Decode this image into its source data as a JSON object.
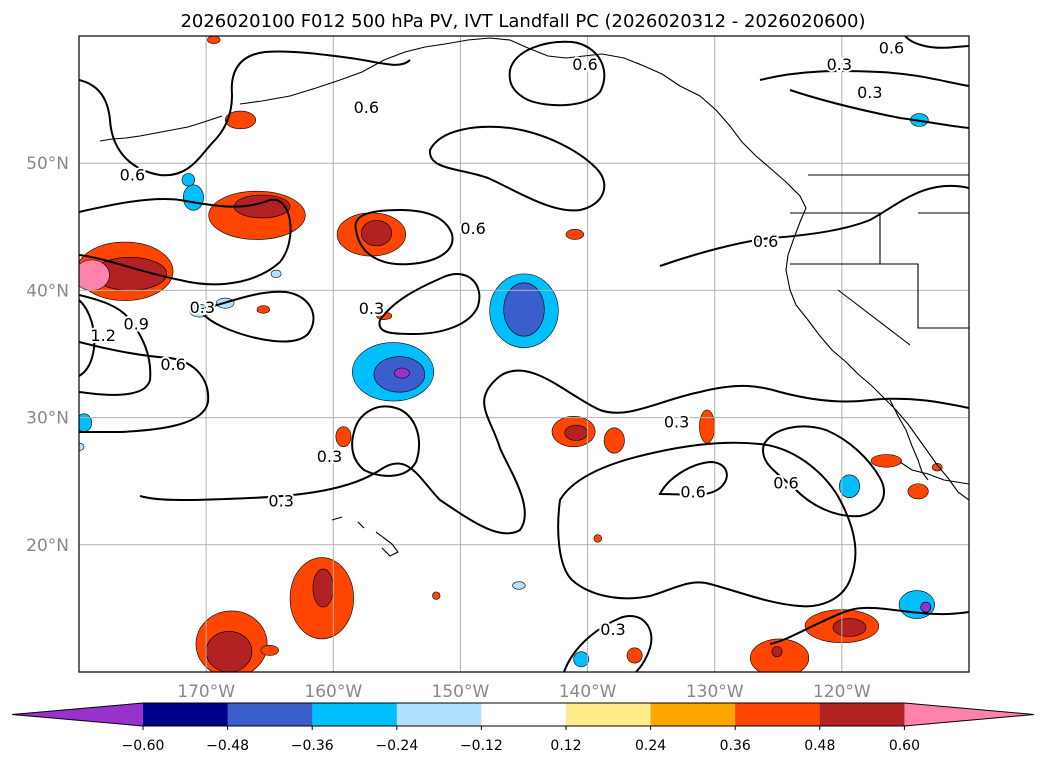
{
  "chart_data": {
    "type": "heatmap",
    "title": "2026020100 F012 500 hPa PV, IVT Landfall PC (2026020312 - 2026020600)",
    "xlim": [
      -180,
      -110
    ],
    "ylim": [
      10,
      60
    ],
    "x_ticks": [
      {
        "value": -170,
        "label": "170°W"
      },
      {
        "value": -160,
        "label": "160°W"
      },
      {
        "value": -150,
        "label": "150°W"
      },
      {
        "value": -140,
        "label": "140°W"
      },
      {
        "value": -130,
        "label": "130°W"
      },
      {
        "value": -120,
        "label": "120°W"
      }
    ],
    "y_ticks": [
      {
        "value": 20,
        "label": "20°N"
      },
      {
        "value": 30,
        "label": "30°N"
      },
      {
        "value": 40,
        "label": "40°N"
      },
      {
        "value": 50,
        "label": "50°N"
      }
    ],
    "grid": true,
    "colorbar": {
      "orientation": "horizontal",
      "placement": "bottom",
      "extend": "both",
      "levels": [
        -0.6,
        -0.48,
        -0.36,
        -0.24,
        -0.12,
        0.12,
        0.24,
        0.36,
        0.48,
        0.6
      ],
      "tick_labels": [
        "−0.60",
        "−0.48",
        "−0.36",
        "−0.24",
        "−0.12",
        "0.12",
        "0.24",
        "0.36",
        "0.48",
        "0.60"
      ],
      "colors": [
        "#9932cc",
        "#00008b",
        "#3a5fcd",
        "#00bfff",
        "#b0e2ff",
        "#ffffff",
        "#ffec8b",
        "#ffa500",
        "#ff4500",
        "#b22222",
        "#ff82ab"
      ]
    },
    "contour_labels": [
      {
        "text": "0.6",
        "lon": -157.4,
        "lat": 54.4
      },
      {
        "text": "0.6",
        "lon": -140.2,
        "lat": 57.8
      },
      {
        "text": "0.3",
        "lon": -120.2,
        "lat": 57.8
      },
      {
        "text": "0.3",
        "lon": -117.8,
        "lat": 55.6
      },
      {
        "text": "0.6",
        "lon": -116.1,
        "lat": 59.1
      },
      {
        "text": "0.6",
        "lon": -175.8,
        "lat": 49.1
      },
      {
        "text": "0.6",
        "lon": -149.0,
        "lat": 44.9
      },
      {
        "text": "0.6",
        "lon": -126.0,
        "lat": 43.9
      },
      {
        "text": "0.3",
        "lon": -170.3,
        "lat": 38.7
      },
      {
        "text": "0.3",
        "lon": -157.0,
        "lat": 38.6
      },
      {
        "text": "0.9",
        "lon": -175.5,
        "lat": 37.4
      },
      {
        "text": "1.2",
        "lon": -178.1,
        "lat": 36.5
      },
      {
        "text": "0.6",
        "lon": -172.6,
        "lat": 34.2
      },
      {
        "text": "0.3",
        "lon": -160.3,
        "lat": 27.0
      },
      {
        "text": "0.3",
        "lon": -133.0,
        "lat": 29.7
      },
      {
        "text": "0.6",
        "lon": -131.7,
        "lat": 24.2
      },
      {
        "text": "0.6",
        "lon": -124.4,
        "lat": 24.9
      },
      {
        "text": "0.3",
        "lon": -164.1,
        "lat": 23.5
      },
      {
        "text": "0.3",
        "lon": -138.0,
        "lat": 13.4
      }
    ],
    "blobs": [
      {
        "level": -0.36,
        "lon": -171.0,
        "lat": 47.3,
        "rx": 0.8,
        "ry": 1.0
      },
      {
        "level": -0.36,
        "lon": -171.4,
        "lat": 48.7,
        "rx": 0.5,
        "ry": 0.5
      },
      {
        "level": -0.24,
        "lon": -170.5,
        "lat": 38.4,
        "rx": 0.8,
        "ry": 0.5
      },
      {
        "level": -0.24,
        "lon": -168.5,
        "lat": 39.0,
        "rx": 0.7,
        "ry": 0.4
      },
      {
        "level": -0.36,
        "lon": -155.3,
        "lat": 33.6,
        "rx": 3.2,
        "ry": 2.3
      },
      {
        "level": -0.48,
        "lon": -154.8,
        "lat": 33.4,
        "rx": 2.0,
        "ry": 1.4
      },
      {
        "level": -0.6,
        "lon": -154.6,
        "lat": 33.5,
        "rx": 0.6,
        "ry": 0.4
      },
      {
        "level": -0.36,
        "lon": -145.0,
        "lat": 38.4,
        "rx": 2.7,
        "ry": 2.9
      },
      {
        "level": -0.48,
        "lon": -145.0,
        "lat": 38.5,
        "rx": 1.6,
        "ry": 2.1
      },
      {
        "level": -0.36,
        "lon": -179.6,
        "lat": 29.6,
        "rx": 0.6,
        "ry": 0.7
      },
      {
        "level": -0.24,
        "lon": -180.0,
        "lat": 27.7,
        "rx": 0.4,
        "ry": 0.3
      },
      {
        "level": -0.36,
        "lon": -114.1,
        "lat": 15.3,
        "rx": 1.4,
        "ry": 1.1
      },
      {
        "level": -0.6,
        "lon": -113.4,
        "lat": 15.1,
        "rx": 0.4,
        "ry": 0.4
      },
      {
        "level": -0.36,
        "lon": -119.4,
        "lat": 24.6,
        "rx": 0.8,
        "ry": 0.9
      },
      {
        "level": -0.36,
        "lon": -113.9,
        "lat": 53.4,
        "rx": 0.7,
        "ry": 0.5
      },
      {
        "level": -0.36,
        "lon": -140.5,
        "lat": 11.0,
        "rx": 0.6,
        "ry": 0.6
      },
      {
        "level": -0.24,
        "lon": -145.4,
        "lat": 16.8,
        "rx": 0.5,
        "ry": 0.3
      },
      {
        "level": -0.24,
        "lon": -164.5,
        "lat": 41.3,
        "rx": 0.4,
        "ry": 0.3
      },
      {
        "level": 0.36,
        "lon": -176.4,
        "lat": 41.5,
        "rx": 3.8,
        "ry": 2.3
      },
      {
        "level": 0.48,
        "lon": -176.0,
        "lat": 41.3,
        "rx": 2.9,
        "ry": 1.3
      },
      {
        "level": 0.6,
        "lon": -179.0,
        "lat": 41.2,
        "rx": 1.4,
        "ry": 1.2
      },
      {
        "level": 0.36,
        "lon": -166.0,
        "lat": 45.9,
        "rx": 3.8,
        "ry": 1.9
      },
      {
        "level": 0.48,
        "lon": -165.6,
        "lat": 46.6,
        "rx": 2.2,
        "ry": 0.9
      },
      {
        "level": 0.36,
        "lon": -167.3,
        "lat": 53.4,
        "rx": 1.2,
        "ry": 0.7
      },
      {
        "level": 0.36,
        "lon": -157.0,
        "lat": 44.4,
        "rx": 2.7,
        "ry": 1.7
      },
      {
        "level": 0.48,
        "lon": -156.6,
        "lat": 44.5,
        "rx": 1.2,
        "ry": 1.0
      },
      {
        "level": 0.36,
        "lon": -141.0,
        "lat": 44.4,
        "rx": 0.7,
        "ry": 0.4
      },
      {
        "level": 0.36,
        "lon": -165.5,
        "lat": 38.5,
        "rx": 0.5,
        "ry": 0.3
      },
      {
        "level": 0.36,
        "lon": -159.2,
        "lat": 28.5,
        "rx": 0.6,
        "ry": 0.8
      },
      {
        "level": 0.36,
        "lon": -156.0,
        "lat": 38.0,
        "rx": 0.6,
        "ry": 0.3
      },
      {
        "level": 0.36,
        "lon": -160.9,
        "lat": 15.8,
        "rx": 2.5,
        "ry": 3.2
      },
      {
        "level": 0.48,
        "lon": -160.8,
        "lat": 16.6,
        "rx": 0.8,
        "ry": 1.5
      },
      {
        "level": 0.36,
        "lon": -168.0,
        "lat": 12.2,
        "rx": 2.8,
        "ry": 2.6
      },
      {
        "level": 0.48,
        "lon": -168.2,
        "lat": 11.6,
        "rx": 1.8,
        "ry": 1.6
      },
      {
        "level": 0.36,
        "lon": -165.0,
        "lat": 11.7,
        "rx": 0.7,
        "ry": 0.4
      },
      {
        "level": 0.36,
        "lon": -141.1,
        "lat": 28.9,
        "rx": 1.7,
        "ry": 1.2
      },
      {
        "level": 0.48,
        "lon": -140.9,
        "lat": 28.8,
        "rx": 0.9,
        "ry": 0.6
      },
      {
        "level": 0.36,
        "lon": -137.9,
        "lat": 28.2,
        "rx": 0.8,
        "ry": 1.0
      },
      {
        "level": 0.36,
        "lon": -130.6,
        "lat": 29.3,
        "rx": 0.6,
        "ry": 1.3
      },
      {
        "level": 0.36,
        "lon": -139.2,
        "lat": 20.5,
        "rx": 0.3,
        "ry": 0.3
      },
      {
        "level": 0.36,
        "lon": -124.9,
        "lat": 11.1,
        "rx": 2.3,
        "ry": 1.5
      },
      {
        "level": 0.48,
        "lon": -125.1,
        "lat": 11.6,
        "rx": 0.4,
        "ry": 0.4
      },
      {
        "level": 0.36,
        "lon": -120.0,
        "lat": 13.6,
        "rx": 2.9,
        "ry": 1.3
      },
      {
        "level": 0.48,
        "lon": -119.4,
        "lat": 13.5,
        "rx": 1.3,
        "ry": 0.7
      },
      {
        "level": 0.36,
        "lon": -136.3,
        "lat": 11.3,
        "rx": 0.6,
        "ry": 0.6
      },
      {
        "level": 0.36,
        "lon": -116.5,
        "lat": 26.6,
        "rx": 1.2,
        "ry": 0.5
      },
      {
        "level": 0.36,
        "lon": -114.0,
        "lat": 24.2,
        "rx": 0.8,
        "ry": 0.6
      },
      {
        "level": 0.36,
        "lon": -112.5,
        "lat": 26.1,
        "rx": 0.4,
        "ry": 0.3
      },
      {
        "level": 0.36,
        "lon": -169.4,
        "lat": 59.7,
        "rx": 0.5,
        "ry": 0.3
      },
      {
        "level": 0.36,
        "lon": -151.9,
        "lat": 16.0,
        "rx": 0.3,
        "ry": 0.3
      }
    ]
  }
}
